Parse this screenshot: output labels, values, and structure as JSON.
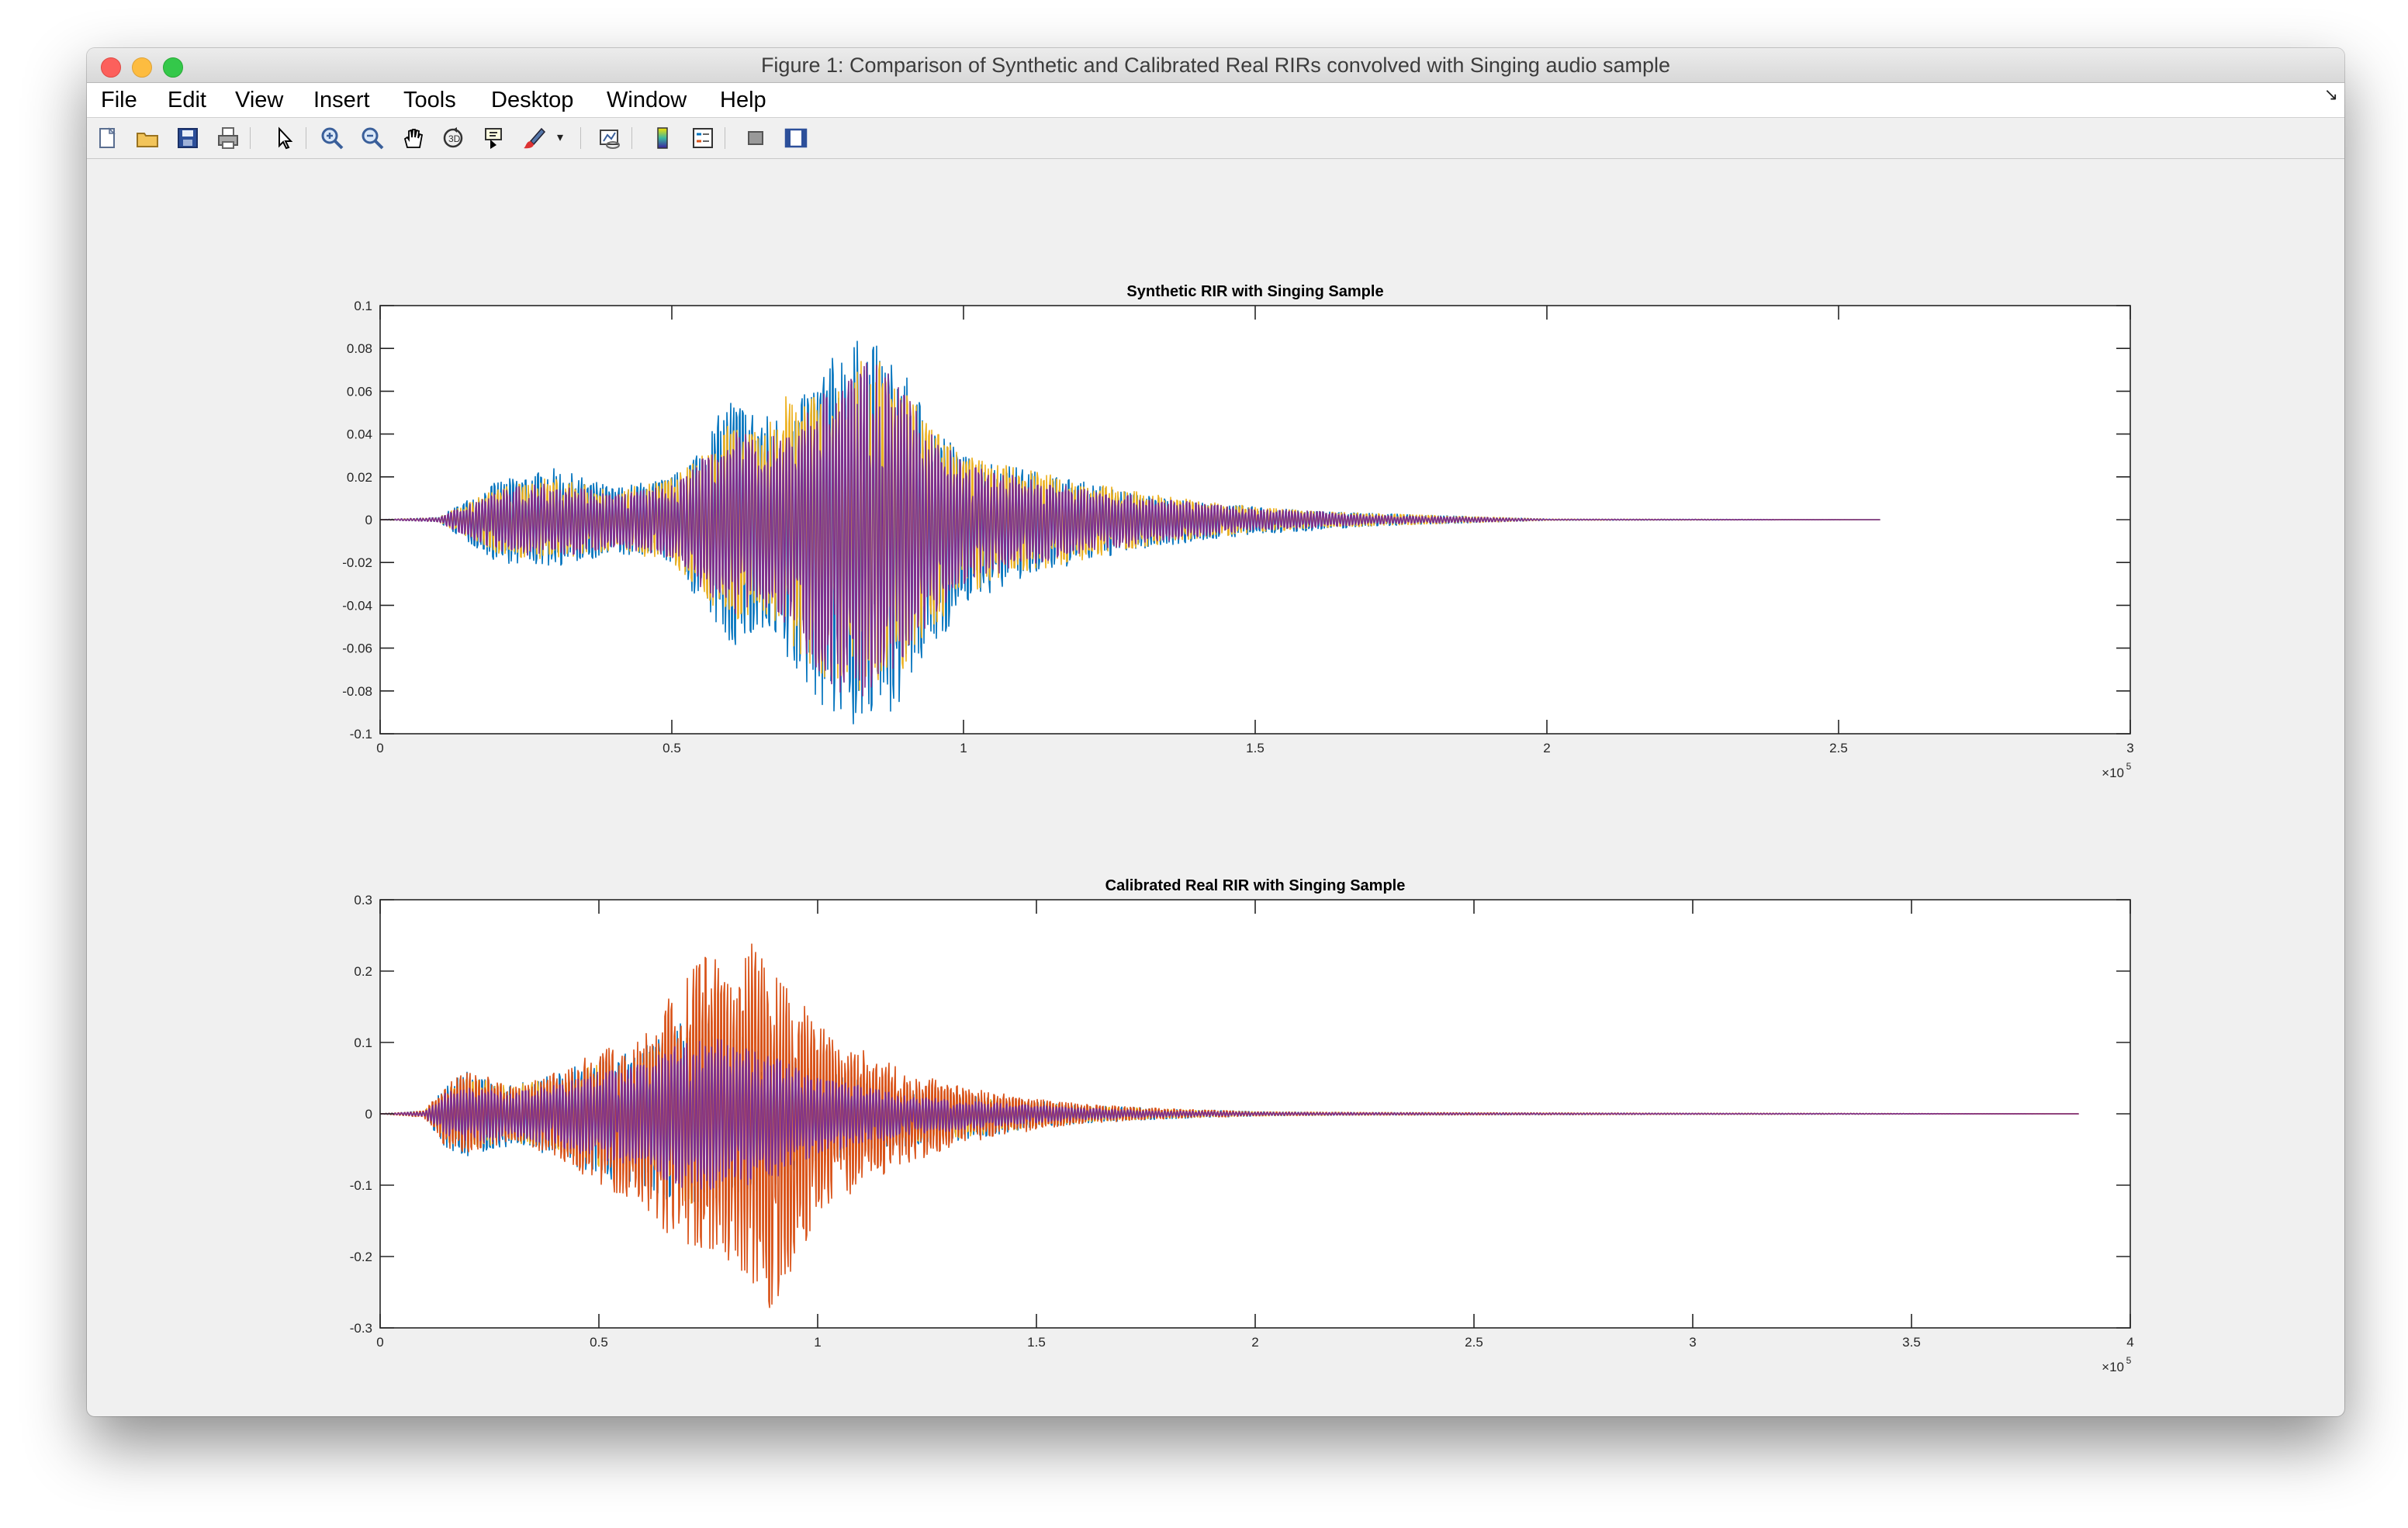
{
  "window": {
    "title": "Figure 1: Comparison of Synthetic and Calibrated Real RIRs convolved with Singing audio sample"
  },
  "menu": [
    {
      "label": "File"
    },
    {
      "label": "Edit"
    },
    {
      "label": "View"
    },
    {
      "label": "Insert"
    },
    {
      "label": "Tools"
    },
    {
      "label": "Desktop"
    },
    {
      "label": "Window"
    },
    {
      "label": "Help"
    }
  ],
  "toolbar": {
    "icons": [
      "new-figure-icon",
      "open-file-icon",
      "save-icon",
      "print-icon",
      "pointer-icon",
      "zoom-in-icon",
      "zoom-out-icon",
      "pan-hand-icon",
      "rotate-3d-icon",
      "data-cursor-icon",
      "brush-icon",
      "link-plot-icon",
      "colorbar-icon",
      "legend-icon",
      "hide-plot-tools-icon",
      "show-plot-tools-icon"
    ]
  },
  "colors": {
    "blue": "#0072bd",
    "orange": "#d95319",
    "yellow": "#edb120",
    "purple": "#7e2f8e"
  },
  "chart_data": [
    {
      "type": "line",
      "title": "Synthetic RIR with Singing Sample",
      "xlabel": "",
      "ylabel": "",
      "xlim": [
        0,
        300000
      ],
      "ylim": [
        -0.1,
        0.1
      ],
      "x_exponent_label": "×10",
      "x_exponent": "5",
      "x_ticks": [
        "0",
        "0.5",
        "1",
        "1.5",
        "2",
        "2.5",
        "3"
      ],
      "y_ticks": [
        "0.1",
        "0.08",
        "0.06",
        "0.04",
        "0.02",
        "0",
        "-0.02",
        "-0.04",
        "-0.06",
        "-0.08",
        "-0.1"
      ],
      "grid": false,
      "series": [
        {
          "color": "#0072bd",
          "x": [
            0,
            10000,
            20000,
            30000,
            40000,
            50000,
            55000,
            60000,
            65000,
            70000,
            75000,
            80000,
            85000,
            90000,
            95000,
            100000,
            110000,
            120000,
            130000,
            140000,
            150000,
            160000,
            170000,
            180000,
            190000,
            200000,
            257000
          ],
          "upper": [
            0,
            0.001,
            0.018,
            0.024,
            0.015,
            0.02,
            0.035,
            0.058,
            0.05,
            0.048,
            0.068,
            0.085,
            0.082,
            0.067,
            0.045,
            0.03,
            0.024,
            0.018,
            0.012,
            0.008,
            0.006,
            0.004,
            0.003,
            0.002,
            0.0012,
            0.0003,
            0
          ],
          "lower": [
            0,
            -0.001,
            -0.02,
            -0.022,
            -0.016,
            -0.02,
            -0.04,
            -0.06,
            -0.055,
            -0.07,
            -0.085,
            -0.098,
            -0.097,
            -0.082,
            -0.06,
            -0.04,
            -0.028,
            -0.02,
            -0.014,
            -0.01,
            -0.007,
            -0.005,
            -0.003,
            -0.002,
            -0.0012,
            -0.0003,
            0
          ]
        },
        {
          "color": "#edb120",
          "x": [
            0,
            10000,
            20000,
            30000,
            40000,
            50000,
            55000,
            60000,
            65000,
            70000,
            75000,
            80000,
            85000,
            90000,
            95000,
            100000,
            110000,
            120000,
            130000,
            140000,
            150000,
            160000,
            170000,
            180000,
            190000,
            200000,
            257000
          ],
          "upper": [
            0,
            0.001,
            0.015,
            0.02,
            0.013,
            0.02,
            0.03,
            0.045,
            0.04,
            0.06,
            0.065,
            0.07,
            0.078,
            0.06,
            0.042,
            0.03,
            0.024,
            0.018,
            0.013,
            0.009,
            0.006,
            0.004,
            0.003,
            0.002,
            0.0012,
            0.0003,
            0
          ],
          "lower": [
            0,
            -0.001,
            -0.016,
            -0.02,
            -0.014,
            -0.02,
            -0.034,
            -0.05,
            -0.042,
            -0.06,
            -0.072,
            -0.08,
            -0.085,
            -0.07,
            -0.05,
            -0.035,
            -0.025,
            -0.019,
            -0.013,
            -0.009,
            -0.006,
            -0.004,
            -0.003,
            -0.002,
            -0.0012,
            -0.0003,
            0
          ]
        },
        {
          "color": "#7e2f8e",
          "x": [
            0,
            10000,
            20000,
            30000,
            40000,
            50000,
            55000,
            60000,
            65000,
            70000,
            75000,
            80000,
            85000,
            90000,
            95000,
            100000,
            110000,
            120000,
            130000,
            140000,
            150000,
            160000,
            170000,
            180000,
            190000,
            200000,
            257000
          ],
          "upper": [
            0,
            0.001,
            0.014,
            0.018,
            0.012,
            0.016,
            0.028,
            0.042,
            0.038,
            0.042,
            0.058,
            0.07,
            0.075,
            0.058,
            0.04,
            0.026,
            0.02,
            0.015,
            0.011,
            0.008,
            0.005,
            0.004,
            0.002,
            0.0015,
            0.001,
            0.0002,
            0
          ],
          "lower": [
            0,
            -0.001,
            -0.015,
            -0.018,
            -0.013,
            -0.018,
            -0.032,
            -0.045,
            -0.04,
            -0.05,
            -0.07,
            -0.085,
            -0.08,
            -0.065,
            -0.045,
            -0.03,
            -0.022,
            -0.016,
            -0.012,
            -0.008,
            -0.005,
            -0.004,
            -0.002,
            -0.0015,
            -0.001,
            -0.0002,
            0
          ]
        }
      ]
    },
    {
      "type": "line",
      "title": "Calibrated Real RIR with Singing Sample",
      "xlabel": "",
      "ylabel": "",
      "xlim": [
        0,
        400000
      ],
      "ylim": [
        -0.3,
        0.3
      ],
      "x_exponent_label": "×10",
      "x_exponent": "5",
      "x_ticks": [
        "0",
        "0.5",
        "1",
        "1.5",
        "2",
        "2.5",
        "3",
        "3.5",
        "4"
      ],
      "y_ticks": [
        "0.3",
        "0.2",
        "0.1",
        "0",
        "-0.1",
        "-0.2",
        "-0.3"
      ],
      "grid": false,
      "series": [
        {
          "color": "#0072bd",
          "x": [
            0,
            10000,
            15000,
            20000,
            25000,
            30000,
            40000,
            50000,
            60000,
            65000,
            70000,
            75000,
            80000,
            85000,
            90000,
            95000,
            100000,
            110000,
            120000,
            130000,
            140000,
            150000,
            160000,
            170000,
            180000,
            190000,
            200000,
            220000,
            250000,
            300000,
            388000
          ],
          "upper": [
            0,
            0.004,
            0.04,
            0.06,
            0.05,
            0.04,
            0.055,
            0.08,
            0.09,
            0.12,
            0.13,
            0.14,
            0.12,
            0.1,
            0.09,
            0.08,
            0.06,
            0.05,
            0.03,
            0.028,
            0.022,
            0.018,
            0.012,
            0.01,
            0.006,
            0.005,
            0.003,
            0.002,
            0.0015,
            0.0008,
            0
          ],
          "lower": [
            0,
            -0.005,
            -0.05,
            -0.06,
            -0.05,
            -0.045,
            -0.06,
            -0.09,
            -0.1,
            -0.12,
            -0.14,
            -0.13,
            -0.12,
            -0.11,
            -0.1,
            -0.09,
            -0.07,
            -0.06,
            -0.05,
            -0.04,
            -0.03,
            -0.02,
            -0.013,
            -0.01,
            -0.007,
            -0.005,
            -0.003,
            -0.002,
            -0.0015,
            -0.0008,
            0
          ]
        },
        {
          "color": "#edb120",
          "x": [
            0,
            10000,
            15000,
            20000,
            25000,
            30000,
            40000,
            50000,
            60000,
            65000,
            70000,
            75000,
            80000,
            85000,
            90000,
            95000,
            100000,
            110000,
            120000,
            130000,
            140000,
            150000,
            160000,
            170000,
            180000,
            190000,
            200000,
            220000,
            250000,
            300000,
            388000
          ],
          "upper": [
            0,
            0.004,
            0.035,
            0.055,
            0.045,
            0.04,
            0.05,
            0.07,
            0.08,
            0.11,
            0.12,
            0.13,
            0.11,
            0.09,
            0.085,
            0.075,
            0.055,
            0.045,
            0.03,
            0.025,
            0.02,
            0.016,
            0.011,
            0.009,
            0.006,
            0.004,
            0.003,
            0.002,
            0.0015,
            0.0008,
            0
          ],
          "lower": [
            0,
            -0.004,
            -0.04,
            -0.05,
            -0.045,
            -0.04,
            -0.05,
            -0.075,
            -0.085,
            -0.11,
            -0.13,
            -0.12,
            -0.11,
            -0.1,
            -0.09,
            -0.08,
            -0.06,
            -0.05,
            -0.04,
            -0.035,
            -0.028,
            -0.018,
            -0.012,
            -0.009,
            -0.006,
            -0.004,
            -0.003,
            -0.002,
            -0.0015,
            -0.0008,
            0
          ]
        },
        {
          "color": "#d95319",
          "x": [
            0,
            10000,
            15000,
            20000,
            25000,
            30000,
            40000,
            50000,
            60000,
            65000,
            70000,
            75000,
            80000,
            85000,
            90000,
            95000,
            100000,
            110000,
            120000,
            130000,
            140000,
            150000,
            160000,
            170000,
            180000,
            190000,
            200000,
            220000,
            250000,
            300000,
            388000
          ],
          "upper": [
            0,
            0.004,
            0.045,
            0.065,
            0.05,
            0.04,
            0.06,
            0.09,
            0.11,
            0.16,
            0.19,
            0.23,
            0.2,
            0.24,
            0.2,
            0.17,
            0.13,
            0.09,
            0.06,
            0.045,
            0.03,
            0.022,
            0.014,
            0.01,
            0.007,
            0.005,
            0.003,
            0.002,
            0.0015,
            0.0008,
            0
          ],
          "lower": [
            0,
            -0.005,
            -0.05,
            -0.055,
            -0.05,
            -0.04,
            -0.06,
            -0.1,
            -0.13,
            -0.17,
            -0.19,
            -0.2,
            -0.21,
            -0.24,
            -0.28,
            -0.2,
            -0.15,
            -0.1,
            -0.07,
            -0.05,
            -0.035,
            -0.022,
            -0.014,
            -0.01,
            -0.007,
            -0.005,
            -0.003,
            -0.002,
            -0.0015,
            -0.0008,
            0
          ]
        },
        {
          "color": "#7e2f8e",
          "x": [
            0,
            10000,
            15000,
            20000,
            25000,
            30000,
            40000,
            50000,
            60000,
            65000,
            70000,
            75000,
            80000,
            85000,
            90000,
            95000,
            100000,
            110000,
            120000,
            130000,
            140000,
            150000,
            160000,
            170000,
            180000,
            190000,
            200000,
            220000,
            250000,
            300000,
            388000
          ],
          "upper": [
            0,
            0.003,
            0.03,
            0.04,
            0.035,
            0.03,
            0.04,
            0.06,
            0.07,
            0.09,
            0.1,
            0.11,
            0.1,
            0.09,
            0.08,
            0.065,
            0.05,
            0.04,
            0.025,
            0.02,
            0.016,
            0.012,
            0.008,
            0.006,
            0.004,
            0.003,
            0.002,
            0.0015,
            0.001,
            0.0006,
            0
          ],
          "lower": [
            0,
            -0.003,
            -0.035,
            -0.045,
            -0.04,
            -0.035,
            -0.045,
            -0.065,
            -0.075,
            -0.095,
            -0.11,
            -0.11,
            -0.1,
            -0.1,
            -0.09,
            -0.075,
            -0.055,
            -0.045,
            -0.03,
            -0.025,
            -0.018,
            -0.013,
            -0.009,
            -0.006,
            -0.004,
            -0.003,
            -0.002,
            -0.0015,
            -0.001,
            -0.0006,
            0
          ]
        }
      ]
    }
  ]
}
